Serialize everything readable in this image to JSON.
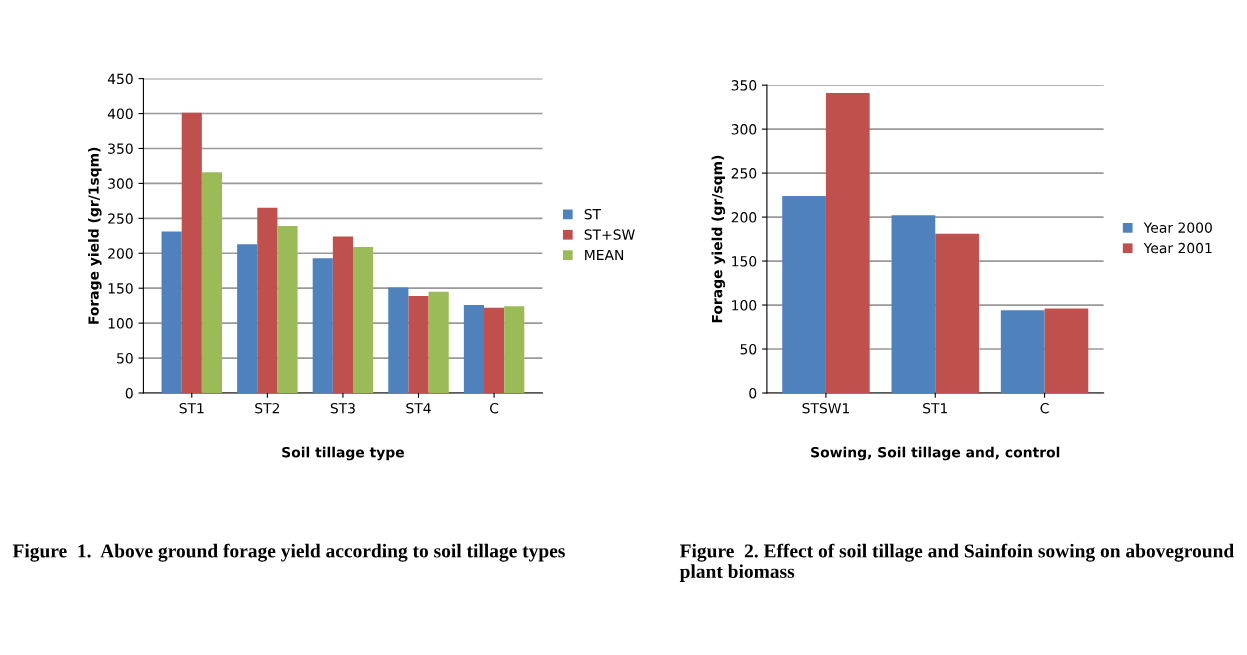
{
  "chart_data": [
    {
      "type": "bar",
      "categories": [
        "ST1",
        "ST2",
        "ST3",
        "ST4",
        "C"
      ],
      "series": [
        {
          "name": "ST",
          "color": "#4f81bd",
          "values": [
            231,
            213,
            193,
            151,
            126
          ]
        },
        {
          "name": "ST+SW",
          "color": "#c0504d",
          "values": [
            401,
            265,
            224,
            139,
            122
          ]
        },
        {
          "name": "MEAN",
          "color": "#9bbb59",
          "values": [
            316,
            239,
            209,
            145,
            124
          ]
        }
      ],
      "xlabel": "Soil tillage type",
      "ylabel": "Forage yield (gr/1sqm)",
      "ylim": [
        0,
        450
      ],
      "yticks": [
        0,
        50,
        100,
        150,
        200,
        250,
        300,
        350,
        400,
        450
      ],
      "grid": "y",
      "legend": "right",
      "annotations": [
        "Figure  1.  Above ground forage yield according to soil tillage types"
      ]
    },
    {
      "type": "bar",
      "categories": [
        "STSW1",
        "ST1",
        "C"
      ],
      "series": [
        {
          "name": "Year 2000",
          "color": "#4f81bd",
          "values": [
            224,
            202,
            94
          ]
        },
        {
          "name": "Year 2001",
          "color": "#c0504d",
          "values": [
            341,
            181,
            96
          ]
        }
      ],
      "xlabel": "Sowing, Soil tillage and, control",
      "ylabel": "Forage yield (gr/sqm)",
      "ylim": [
        0,
        350
      ],
      "yticks": [
        0,
        50,
        100,
        150,
        200,
        250,
        300,
        350
      ],
      "grid": "y",
      "legend": "right",
      "annotations": [
        "Figure  2. Effect of soil tillage and Sainfoin sowing on aboveground plant biomass"
      ]
    }
  ]
}
